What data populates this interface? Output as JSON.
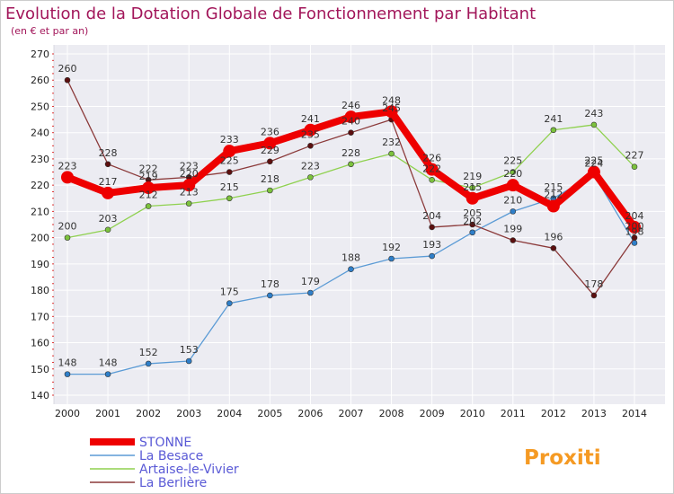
{
  "chart_data": {
    "type": "line",
    "title": "Evolution de la Dotation Globale de Fonctionnement par Habitant",
    "subtitle": "(en € et par an)",
    "x": [
      "2000",
      "2001",
      "2002",
      "2003",
      "2004",
      "2005",
      "2006",
      "2007",
      "2008",
      "2009",
      "2010",
      "2011",
      "2012",
      "2013",
      "2014"
    ],
    "ylim": [
      140,
      270
    ],
    "yticks": [
      "140",
      "150",
      "160",
      "170",
      "180",
      "190",
      "200",
      "210",
      "220",
      "230",
      "240",
      "250",
      "260",
      "270"
    ],
    "grid": true,
    "legend_position": "bottom-left",
    "series": [
      {
        "name": "STONNE",
        "color": "#ee0000",
        "emphasis": true,
        "values": [
          223,
          217,
          219,
          220,
          233,
          236,
          241,
          246,
          248,
          226,
          215,
          220,
          212,
          225,
          204
        ],
        "labels": [
          "223",
          "217",
          "219",
          "220",
          "233",
          "236",
          "241",
          "246",
          "248",
          "226",
          "215",
          "220",
          "212",
          "225",
          "204"
        ]
      },
      {
        "name": "La Besace",
        "color": "#5b9bd5",
        "marker": "#2f7fc9",
        "values": [
          148,
          148,
          152,
          153,
          175,
          178,
          179,
          188,
          192,
          193,
          202,
          210,
          215,
          224,
          198
        ],
        "labels": [
          "148",
          "148",
          "152",
          "153",
          "175",
          "178",
          "179",
          "188",
          "192",
          "193",
          "202",
          "210",
          "215",
          "224",
          "198"
        ]
      },
      {
        "name": "Artaise-le-Vivier",
        "color": "#8fd14f",
        "marker": "#7cc23d",
        "values": [
          200,
          203,
          212,
          213,
          215,
          218,
          223,
          228,
          232,
          222,
          219,
          225,
          241,
          243,
          227
        ],
        "labels": [
          "200",
          "203",
          "212",
          "213",
          "215",
          "218",
          "223",
          "228",
          "232",
          "222",
          "219",
          "225",
          "241",
          "243",
          "227"
        ]
      },
      {
        "name": "La Berlière",
        "color": "#8b3a3a",
        "marker": "#5c0f0f",
        "values": [
          260,
          228,
          222,
          223,
          225,
          229,
          235,
          240,
          245,
          204,
          205,
          199,
          196,
          178,
          200
        ],
        "labels": [
          "260",
          "228",
          "222",
          "223",
          "225",
          "229",
          "235",
          "240",
          "245",
          "204",
          "205",
          "199",
          "196",
          "178",
          "200"
        ]
      }
    ]
  },
  "logo": {
    "text": "Proxiti"
  }
}
